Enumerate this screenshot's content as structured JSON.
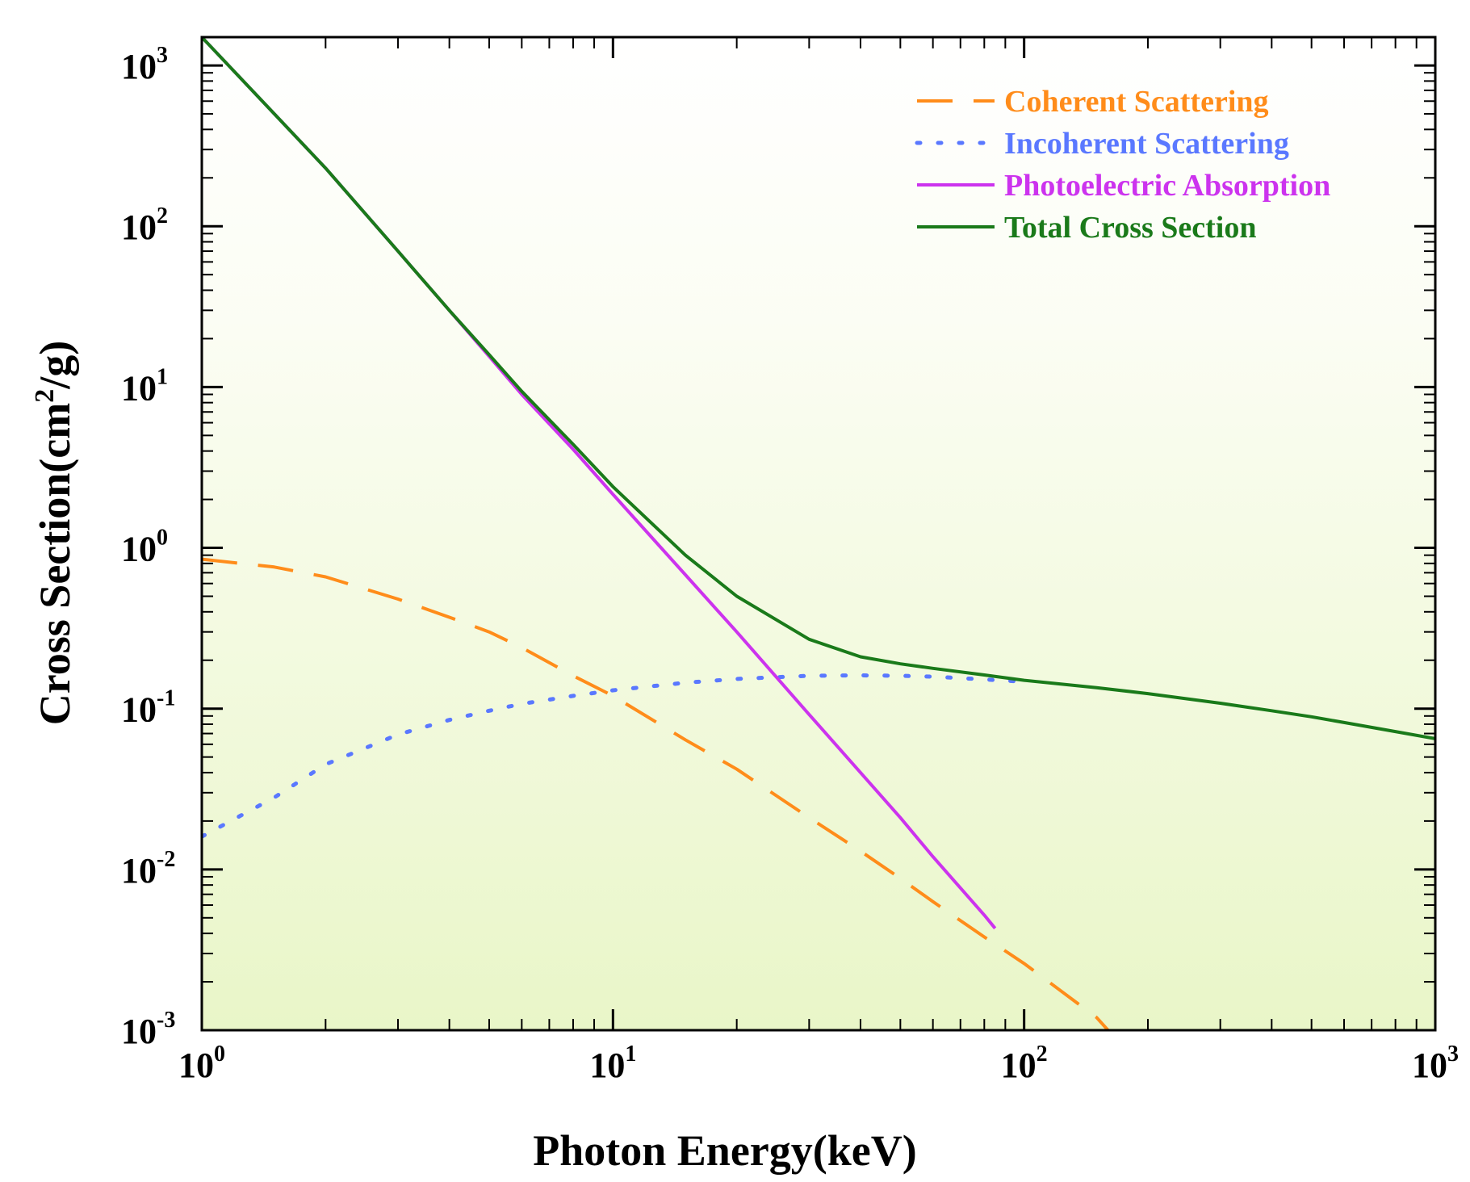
{
  "chart_data": {
    "type": "line",
    "title": "",
    "xlabel": "Photon Energy(keV)",
    "ylabel_main": "Cross Section(cm",
    "ylabel_sup": "2",
    "ylabel_end": "/g)",
    "xscale": "log",
    "yscale": "log",
    "xlim": [
      1,
      1000
    ],
    "ylim": [
      0.001,
      1500
    ],
    "x_ticks": [
      {
        "value": 1,
        "base": "10",
        "exp": "0"
      },
      {
        "value": 10,
        "base": "10",
        "exp": "1"
      },
      {
        "value": 100,
        "base": "10",
        "exp": "2"
      },
      {
        "value": 1000,
        "base": "10",
        "exp": "3"
      }
    ],
    "y_ticks": [
      {
        "value": 0.001,
        "base": "10",
        "exp": "-3"
      },
      {
        "value": 0.01,
        "base": "10",
        "exp": "-2"
      },
      {
        "value": 0.1,
        "base": "10",
        "exp": "-1"
      },
      {
        "value": 1,
        "base": "10",
        "exp": "0"
      },
      {
        "value": 10,
        "base": "10",
        "exp": "1"
      },
      {
        "value": 100,
        "base": "10",
        "exp": "2"
      },
      {
        "value": 1000,
        "base": "10",
        "exp": "3"
      }
    ],
    "legend_position": "top-right",
    "series": [
      {
        "name": "Coherent Scattering",
        "color": "#ff8c1a",
        "style": "dashed",
        "x": [
          1,
          1.5,
          2,
          3,
          4,
          5,
          6,
          8,
          10,
          15,
          20,
          30,
          40,
          50,
          60,
          80,
          100,
          150,
          160
        ],
        "y": [
          0.85,
          0.76,
          0.66,
          0.48,
          0.37,
          0.3,
          0.24,
          0.16,
          0.12,
          0.064,
          0.042,
          0.021,
          0.013,
          0.0088,
          0.0063,
          0.0038,
          0.0026,
          0.0012,
          0.001
        ]
      },
      {
        "name": "Incoherent Scattering",
        "color": "#5a78ff",
        "style": "dotted",
        "x": [
          1,
          1.5,
          2,
          3,
          4,
          5,
          6,
          8,
          10,
          15,
          20,
          30,
          40,
          50,
          60,
          80,
          100
        ],
        "y": [
          0.016,
          0.028,
          0.045,
          0.069,
          0.085,
          0.097,
          0.107,
          0.12,
          0.13,
          0.145,
          0.153,
          0.16,
          0.161,
          0.16,
          0.158,
          0.152,
          0.147
        ]
      },
      {
        "name": "Photoelectric Absorption",
        "color": "#cc33ee",
        "style": "solid",
        "x": [
          1,
          2,
          3,
          4,
          5,
          6,
          8,
          10,
          15,
          20,
          30,
          40,
          50,
          60,
          80,
          85
        ],
        "y": [
          1500,
          230,
          70,
          30,
          15.5,
          9,
          4.1,
          2.15,
          0.68,
          0.3,
          0.092,
          0.04,
          0.021,
          0.012,
          0.0052,
          0.0043
        ]
      },
      {
        "name": "Total Cross Section",
        "color": "#1a7a1a",
        "style": "solid",
        "x": [
          1,
          2,
          3,
          4,
          5,
          6,
          8,
          10,
          15,
          20,
          30,
          40,
          50,
          60,
          80,
          100,
          150,
          200,
          300,
          400,
          500,
          600,
          800,
          1000
        ],
        "y": [
          1500,
          230,
          70,
          30,
          15.9,
          9.4,
          4.4,
          2.4,
          0.9,
          0.5,
          0.27,
          0.21,
          0.19,
          0.178,
          0.162,
          0.15,
          0.135,
          0.124,
          0.108,
          0.097,
          0.089,
          0.082,
          0.072,
          0.065
        ]
      }
    ]
  }
}
